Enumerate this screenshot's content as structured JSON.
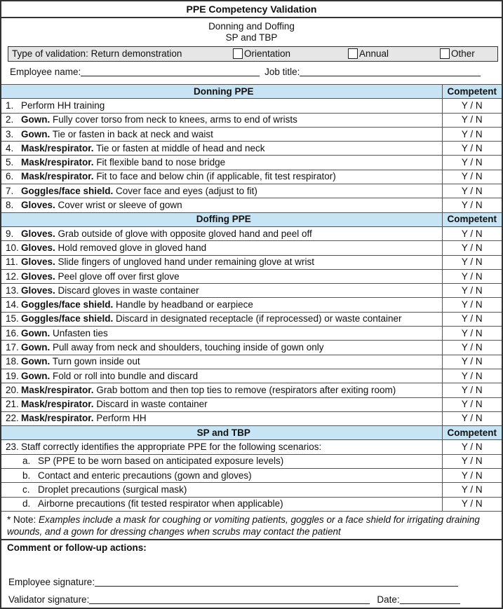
{
  "title": "PPE Competency Validation",
  "subtitle1": "Donning and Doffing",
  "subtitle2": "SP and TBP",
  "validation": {
    "label": "Type of validation: Return demonstration",
    "options": [
      "Orientation",
      "Annual",
      "Other"
    ]
  },
  "employee_name_label": "Employee name:",
  "job_title_label": "Job title:",
  "competent_header": "Competent",
  "yn": "Y / N",
  "sections": [
    {
      "title": "Donning PPE",
      "items": [
        {
          "num": "1.",
          "bold": "",
          "text": "Perform HH training"
        },
        {
          "num": "2.",
          "bold": "Gown.",
          "text": " Fully cover torso from neck to knees, arms to end of wrists"
        },
        {
          "num": "3.",
          "bold": "Gown.",
          "text": " Tie or fasten in back at neck and waist"
        },
        {
          "num": "4.",
          "bold": "Mask/respirator.",
          "text": " Tie or fasten at middle of head and neck"
        },
        {
          "num": "5.",
          "bold": "Mask/respirator.",
          "text": " Fit flexible band to nose bridge"
        },
        {
          "num": "6.",
          "bold": "Mask/respirator.",
          "text": " Fit to face and below chin (if applicable, fit test respirator)"
        },
        {
          "num": "7.",
          "bold": "Goggles/face shield.",
          "text": " Cover face and eyes (adjust to fit)"
        },
        {
          "num": "8.",
          "bold": "Gloves.",
          "text": " Cover wrist or sleeve of gown"
        }
      ]
    },
    {
      "title": "Doffing PPE",
      "items": [
        {
          "num": "9.",
          "bold": "Gloves.",
          "text": " Grab outside of glove with opposite gloved hand and peel off"
        },
        {
          "num": "10.",
          "bold": "Gloves.",
          "text": " Hold removed glove in gloved hand"
        },
        {
          "num": "11.",
          "bold": "Gloves.",
          "text": " Slide fingers of ungloved hand under remaining glove at wrist"
        },
        {
          "num": "12.",
          "bold": "Gloves.",
          "text": " Peel glove off over first glove"
        },
        {
          "num": "13.",
          "bold": "Gloves.",
          "text": " Discard gloves in waste container"
        },
        {
          "num": "14.",
          "bold": "Goggles/face shield.",
          "text": " Handle by headband or earpiece"
        },
        {
          "num": "15.",
          "bold": "Goggles/face shield.",
          "text": " Discard in designated receptacle (if reprocessed) or waste container"
        },
        {
          "num": "16.",
          "bold": "Gown.",
          "text": " Unfasten ties"
        },
        {
          "num": "17.",
          "bold": "Gown.",
          "text": " Pull away from neck and shoulders, touching inside of gown only"
        },
        {
          "num": "18.",
          "bold": "Gown.",
          "text": " Turn gown inside out"
        },
        {
          "num": "19.",
          "bold": "Gown.",
          "text": " Fold or roll into bundle and discard"
        },
        {
          "num": "20.",
          "bold": "Mask/respirator.",
          "text": " Grab bottom and then top ties to remove (respirators after exiting room)"
        },
        {
          "num": "21.",
          "bold": "Mask/respirator.",
          "text": " Discard in waste container"
        },
        {
          "num": "22.",
          "bold": "Mask/respirator.",
          "text": " Perform HH"
        }
      ]
    },
    {
      "title": "SP and TBP",
      "items": [
        {
          "num": "23.",
          "bold": "",
          "text": "Staff correctly identifies the appropriate PPE for the following scenarios:"
        },
        {
          "num": "a.",
          "bold": "",
          "text": "SP (PPE to be worn based on anticipated exposure levels)",
          "sub": true
        },
        {
          "num": "b.",
          "bold": "",
          "text": "Contact and enteric precautions (gown and gloves)",
          "sub": true
        },
        {
          "num": "c.",
          "bold": "",
          "text": "Droplet precautions (surgical mask)",
          "sub": true
        },
        {
          "num": "d.",
          "bold": "",
          "text": "Airborne precautions (fit tested respirator when applicable)",
          "sub": true
        }
      ]
    }
  ],
  "note": {
    "prefix": "* Note: ",
    "text": "Examples include a mask for coughing or vomiting patients, goggles or a face shield for irrigating draining wounds, and a gown for dressing changes when scrubs may contact the patient"
  },
  "comment_label": "Comment or follow-up actions:",
  "employee_signature_label": "Employee signature:",
  "validator_signature_label": "Validator signature:",
  "date_label": "Date:",
  "colors": {
    "header_bg": "#c6e4f4",
    "validation_bg": "#e6e6e6"
  }
}
